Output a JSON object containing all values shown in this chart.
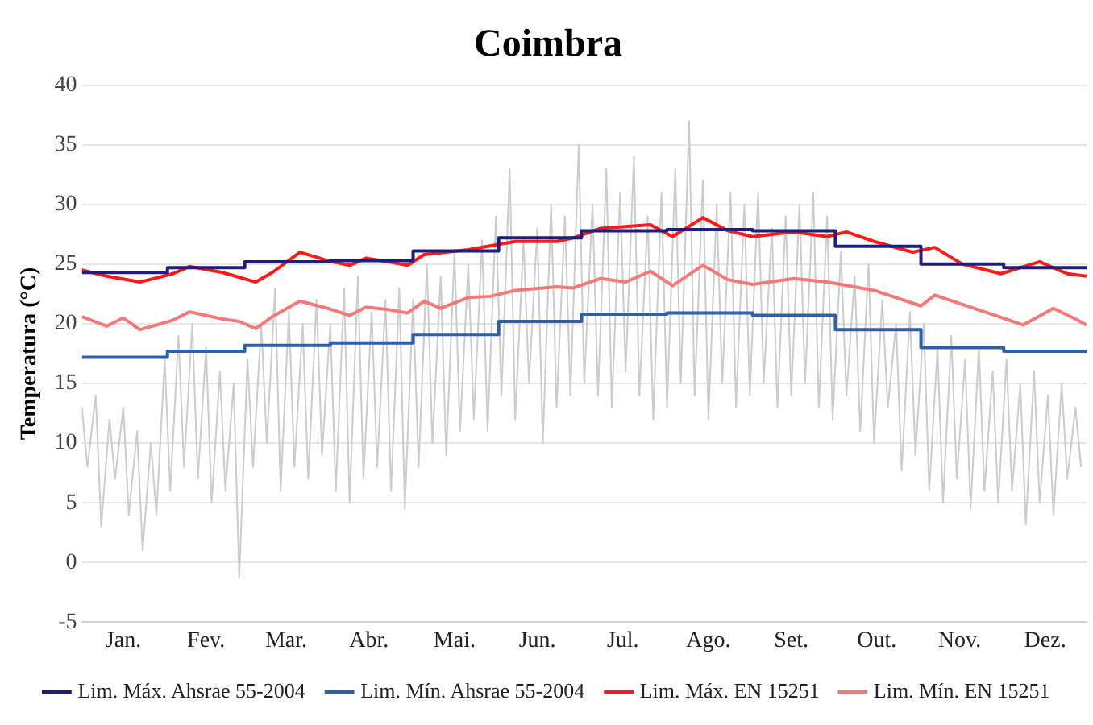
{
  "chart_data": {
    "type": "line",
    "title": "Coimbra",
    "ylabel": "Temperatura (°C)",
    "xlim": [
      "--01-01",
      "--12-31"
    ],
    "xticks": [
      {
        "value": "--01-16",
        "label": "Jan."
      },
      {
        "value": "--02-15",
        "label": "Fev."
      },
      {
        "value": "--03-16",
        "label": "Mar."
      },
      {
        "value": "--04-15",
        "label": "Abr."
      },
      {
        "value": "--05-16",
        "label": "Mai."
      },
      {
        "value": "--06-15",
        "label": "Jun."
      },
      {
        "value": "--07-16",
        "label": "Jul."
      },
      {
        "value": "--08-16",
        "label": "Ago."
      },
      {
        "value": "--09-15",
        "label": "Set."
      },
      {
        "value": "--10-16",
        "label": "Out."
      },
      {
        "value": "--11-15",
        "label": "Nov."
      },
      {
        "value": "--12-16",
        "label": "Dez."
      }
    ],
    "ylim": [
      -5,
      40
    ],
    "yticks": [
      -5,
      0,
      5,
      10,
      15,
      20,
      25,
      30,
      35,
      40
    ],
    "grid": "y",
    "legend": "bottom",
    "marker": "none",
    "line_style": "solid",
    "series": [
      {
        "type": "line",
        "color": "#cccccc",
        "x": [
          "--01-01",
          "--01-03",
          "--01-06",
          "--01-08",
          "--01-11",
          "--01-13",
          "--01-16",
          "--01-18",
          "--01-21",
          "--01-23",
          "--01-26",
          "--01-28",
          "--01-31",
          "--02-02",
          "--02-05",
          "--02-07",
          "--02-10",
          "--02-12",
          "--02-15",
          "--02-17",
          "--02-20",
          "--02-22",
          "--02-25",
          "--02-27",
          "--03-02",
          "--03-04",
          "--03-07",
          "--03-09",
          "--03-12",
          "--03-14",
          "--03-17",
          "--03-19",
          "--03-22",
          "--03-24",
          "--03-27",
          "--03-29",
          "--04-01",
          "--04-03",
          "--04-06",
          "--04-08",
          "--04-11",
          "--04-13",
          "--04-16",
          "--04-18",
          "--04-21",
          "--04-23",
          "--04-26",
          "--04-28",
          "--05-01",
          "--05-03",
          "--05-06",
          "--05-08",
          "--05-11",
          "--05-13",
          "--05-16",
          "--05-18",
          "--05-21",
          "--05-23",
          "--05-26",
          "--05-28",
          "--05-31",
          "--06-02",
          "--06-05",
          "--06-07",
          "--06-10",
          "--06-12",
          "--06-15",
          "--06-17",
          "--06-20",
          "--06-22",
          "--06-25",
          "--06-27",
          "--06-30",
          "--07-02",
          "--07-05",
          "--07-07",
          "--07-10",
          "--07-12",
          "--07-15",
          "--07-17",
          "--07-20",
          "--07-22",
          "--07-25",
          "--07-27",
          "--07-30",
          "--08-01",
          "--08-04",
          "--08-06",
          "--08-09",
          "--08-11",
          "--08-14",
          "--08-16",
          "--08-19",
          "--08-21",
          "--08-24",
          "--08-26",
          "--08-29",
          "--08-31",
          "--09-03",
          "--09-05",
          "--09-08",
          "--09-10",
          "--09-13",
          "--09-15",
          "--09-18",
          "--09-20",
          "--09-23",
          "--09-25",
          "--09-28",
          "--09-30",
          "--10-03",
          "--10-05",
          "--10-08",
          "--10-10",
          "--10-13",
          "--10-15",
          "--10-18",
          "--10-20",
          "--10-23",
          "--10-25",
          "--10-28",
          "--10-30",
          "--11-02",
          "--11-04",
          "--11-07",
          "--11-09",
          "--11-12",
          "--11-14",
          "--11-17",
          "--11-19",
          "--11-22",
          "--11-24",
          "--11-27",
          "--11-29",
          "--12-02",
          "--12-04",
          "--12-07",
          "--12-09",
          "--12-12",
          "--12-14",
          "--12-17",
          "--12-19",
          "--12-22",
          "--12-24",
          "--12-27",
          "--12-29"
        ],
        "values": [
          13,
          8,
          14,
          3,
          12,
          7,
          13,
          4,
          11,
          1,
          10,
          4,
          17,
          6,
          19,
          8,
          20,
          7,
          18,
          5,
          16,
          6,
          15,
          -1.3,
          17,
          8,
          20,
          10,
          23,
          6,
          21,
          8,
          20,
          7,
          22,
          9,
          20,
          6,
          23,
          5,
          24,
          7,
          21,
          8,
          22,
          6,
          23,
          4.5,
          22,
          8,
          25,
          10,
          24,
          9,
          26,
          11,
          25,
          12,
          27,
          11,
          29,
          14,
          33,
          12,
          27,
          15,
          28,
          10,
          30,
          13,
          29,
          14,
          35,
          15,
          30,
          14,
          33,
          13,
          31,
          16,
          34,
          14,
          29,
          12,
          31,
          13,
          33,
          15,
          37,
          14,
          32,
          12,
          30,
          15,
          31,
          13,
          30,
          14,
          31,
          15,
          28,
          13,
          29,
          14,
          30,
          15,
          31,
          13,
          29,
          12,
          26,
          14,
          24,
          11,
          25,
          10,
          22,
          13,
          20,
          7.7,
          21,
          9,
          20,
          6,
          18,
          5,
          19,
          7,
          17,
          4.5,
          18,
          6,
          16,
          5,
          17,
          6,
          15,
          3.2,
          16,
          5,
          14,
          4,
          15,
          7,
          13,
          8
        ]
      },
      {
        "type": "step",
        "name": "Lim. Máx. Ahsrae 55-2004",
        "color": "#1f1f7a",
        "x": [
          "--01-01",
          "--02-01",
          "--03-01",
          "--04-01",
          "--05-01",
          "--06-01",
          "--07-01",
          "--08-01",
          "--09-01",
          "--10-01",
          "--11-01",
          "--12-01",
          "--12-31"
        ],
        "values": [
          24.3,
          24.7,
          25.2,
          25.3,
          26.1,
          27.2,
          27.8,
          27.9,
          27.8,
          26.5,
          25.0,
          24.7,
          24.7
        ]
      },
      {
        "type": "step",
        "name": "Lim. Mín. Ahsrae 55-2004",
        "color": "#2e5faa",
        "x": [
          "--01-01",
          "--02-01",
          "--03-01",
          "--04-01",
          "--05-01",
          "--06-01",
          "--07-01",
          "--08-01",
          "--09-01",
          "--10-01",
          "--11-01",
          "--12-01",
          "--12-31"
        ],
        "values": [
          17.2,
          17.7,
          18.2,
          18.4,
          19.1,
          20.2,
          20.8,
          20.9,
          20.7,
          19.5,
          18.0,
          17.7,
          17.7
        ]
      },
      {
        "type": "line",
        "name": "Lim. Máx. EN 15251",
        "color": "#ff1a1a",
        "x": [
          "--01-01",
          "--01-10",
          "--01-22",
          "--02-03",
          "--02-09",
          "--02-21",
          "--03-05",
          "--03-11",
          "--03-21",
          "--03-31",
          "--04-08",
          "--04-14",
          "--04-22",
          "--04-29",
          "--05-05",
          "--05-21",
          "--06-07",
          "--06-22",
          "--06-28",
          "--07-08",
          "--07-26",
          "--08-03",
          "--08-14",
          "--08-23",
          "--09-01",
          "--09-16",
          "--09-28",
          "--10-05",
          "--10-15",
          "--10-29",
          "--11-06",
          "--11-16",
          "--11-30",
          "--12-14",
          "--12-24",
          "--12-31"
        ],
        "values": [
          24.5,
          24.0,
          23.5,
          24.2,
          24.8,
          24.3,
          23.5,
          24.3,
          26.0,
          25.3,
          24.9,
          25.5,
          25.2,
          24.9,
          25.8,
          26.2,
          26.9,
          26.9,
          27.2,
          28.0,
          28.3,
          27.3,
          28.9,
          27.8,
          27.3,
          27.7,
          27.3,
          27.7,
          26.9,
          26.0,
          26.4,
          25.0,
          24.2,
          25.2,
          24.2,
          24.0
        ]
      },
      {
        "type": "line",
        "name": "Lim. Mín. EN 15251",
        "color": "#f47a7a",
        "x": [
          "--01-01",
          "--01-10",
          "--01-16",
          "--01-22",
          "--02-03",
          "--02-09",
          "--02-21",
          "--02-27",
          "--03-05",
          "--03-11",
          "--03-21",
          "--03-31",
          "--04-08",
          "--04-14",
          "--04-22",
          "--04-29",
          "--05-05",
          "--05-11",
          "--05-21",
          "--05-29",
          "--06-07",
          "--06-22",
          "--06-28",
          "--07-08",
          "--07-17",
          "--07-26",
          "--08-03",
          "--08-14",
          "--08-23",
          "--09-01",
          "--09-16",
          "--09-28",
          "--10-15",
          "--11-01",
          "--11-06",
          "--11-28",
          "--12-08",
          "--12-19",
          "--12-27",
          "--12-31"
        ],
        "values": [
          20.6,
          19.8,
          20.5,
          19.5,
          20.3,
          21.0,
          20.4,
          20.2,
          19.6,
          20.6,
          21.9,
          21.3,
          20.7,
          21.4,
          21.2,
          20.9,
          21.9,
          21.3,
          22.2,
          22.3,
          22.8,
          23.1,
          23.0,
          23.8,
          23.5,
          24.4,
          23.2,
          24.9,
          23.7,
          23.3,
          23.8,
          23.5,
          22.8,
          21.5,
          22.4,
          20.7,
          19.9,
          21.3,
          20.4,
          19.9
        ]
      }
    ]
  }
}
